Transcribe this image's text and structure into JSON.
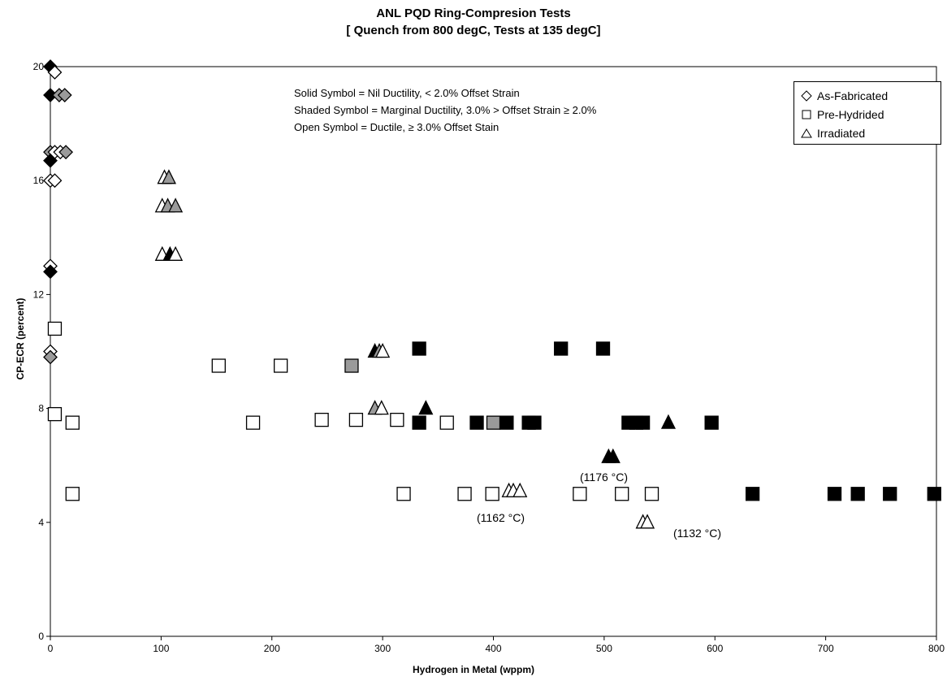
{
  "chart_data": {
    "type": "scatter",
    "title": "ANL PQD Ring-Compresion Tests",
    "subtitle": "[ Quench from 800 degC, Tests at 135 degC]",
    "xlabel": "Hydrogen in Metal (wppm)",
    "ylabel": "CP-ECR (percent)",
    "xlim": [
      0,
      800
    ],
    "ylim": [
      0,
      20
    ],
    "xticks": [
      0,
      100,
      200,
      300,
      400,
      500,
      600,
      700,
      800
    ],
    "yticks": [
      0,
      4,
      8,
      12,
      16,
      20
    ],
    "grid": false,
    "legend_position": "top-right",
    "legend": [
      "As-Fabricated",
      "Pre-Hydrided",
      "Irradiated"
    ],
    "notes": [
      "Solid Symbol = Nil Ductility,  < 2.0% Offset Strain",
      "Shaded Symbol = Marginal Ductility, 3.0% > Offset Strain ≥ 2.0%",
      "Open Symbol = Ductile, ≥ 3.0% Offset Stain"
    ],
    "series": [
      {
        "name": "As-Fabricated",
        "marker": "diamond",
        "points": [
          {
            "x": 0,
            "y": 20,
            "fill": "solid"
          },
          {
            "x": 4,
            "y": 19.8,
            "fill": "open"
          },
          {
            "x": 0,
            "y": 19,
            "fill": "solid"
          },
          {
            "x": 8,
            "y": 19,
            "fill": "shaded"
          },
          {
            "x": 13,
            "y": 19,
            "fill": "shaded"
          },
          {
            "x": 0,
            "y": 17,
            "fill": "shaded"
          },
          {
            "x": 4,
            "y": 17,
            "fill": "open"
          },
          {
            "x": 9,
            "y": 17,
            "fill": "open"
          },
          {
            "x": 14,
            "y": 17,
            "fill": "shaded"
          },
          {
            "x": 0,
            "y": 16.7,
            "fill": "solid"
          },
          {
            "x": 0,
            "y": 16,
            "fill": "open"
          },
          {
            "x": 4,
            "y": 16,
            "fill": "open"
          },
          {
            "x": 0,
            "y": 13,
            "fill": "open"
          },
          {
            "x": 0,
            "y": 12.8,
            "fill": "solid"
          },
          {
            "x": 0,
            "y": 10,
            "fill": "open"
          },
          {
            "x": 0,
            "y": 9.8,
            "fill": "shaded"
          }
        ]
      },
      {
        "name": "Pre-Hydrided",
        "marker": "square",
        "points": [
          {
            "x": 4,
            "y": 10.8,
            "fill": "open"
          },
          {
            "x": 4,
            "y": 7.8,
            "fill": "open"
          },
          {
            "x": 20,
            "y": 7.5,
            "fill": "open"
          },
          {
            "x": 20,
            "y": 5,
            "fill": "open"
          },
          {
            "x": 152,
            "y": 9.5,
            "fill": "open"
          },
          {
            "x": 208,
            "y": 9.5,
            "fill": "open"
          },
          {
            "x": 272,
            "y": 9.5,
            "fill": "shaded"
          },
          {
            "x": 183,
            "y": 7.5,
            "fill": "open"
          },
          {
            "x": 245,
            "y": 7.6,
            "fill": "open"
          },
          {
            "x": 276,
            "y": 7.6,
            "fill": "open"
          },
          {
            "x": 313,
            "y": 7.6,
            "fill": "open"
          },
          {
            "x": 333,
            "y": 10.1,
            "fill": "solid"
          },
          {
            "x": 461,
            "y": 10.1,
            "fill": "solid"
          },
          {
            "x": 499,
            "y": 10.1,
            "fill": "solid"
          },
          {
            "x": 333,
            "y": 7.5,
            "fill": "solid"
          },
          {
            "x": 358,
            "y": 7.5,
            "fill": "open"
          },
          {
            "x": 385,
            "y": 7.5,
            "fill": "solid"
          },
          {
            "x": 400,
            "y": 7.5,
            "fill": "shaded"
          },
          {
            "x": 412,
            "y": 7.5,
            "fill": "solid"
          },
          {
            "x": 432,
            "y": 7.5,
            "fill": "solid"
          },
          {
            "x": 437,
            "y": 7.5,
            "fill": "solid"
          },
          {
            "x": 522,
            "y": 7.5,
            "fill": "solid"
          },
          {
            "x": 529,
            "y": 7.5,
            "fill": "solid"
          },
          {
            "x": 535,
            "y": 7.5,
            "fill": "solid"
          },
          {
            "x": 597,
            "y": 7.5,
            "fill": "solid"
          },
          {
            "x": 319,
            "y": 5,
            "fill": "open"
          },
          {
            "x": 374,
            "y": 5,
            "fill": "open"
          },
          {
            "x": 399,
            "y": 5,
            "fill": "open"
          },
          {
            "x": 478,
            "y": 5,
            "fill": "open"
          },
          {
            "x": 516,
            "y": 5,
            "fill": "open"
          },
          {
            "x": 543,
            "y": 5,
            "fill": "open"
          },
          {
            "x": 634,
            "y": 5,
            "fill": "solid"
          },
          {
            "x": 708,
            "y": 5,
            "fill": "solid"
          },
          {
            "x": 729,
            "y": 5,
            "fill": "solid"
          },
          {
            "x": 758,
            "y": 5,
            "fill": "solid"
          },
          {
            "x": 798,
            "y": 5,
            "fill": "solid"
          }
        ]
      },
      {
        "name": "Irradiated",
        "marker": "triangle",
        "points": [
          {
            "x": 103,
            "y": 16.1,
            "fill": "open"
          },
          {
            "x": 107,
            "y": 16.1,
            "fill": "shaded"
          },
          {
            "x": 101,
            "y": 15.1,
            "fill": "open"
          },
          {
            "x": 106,
            "y": 15.1,
            "fill": "shaded"
          },
          {
            "x": 113,
            "y": 15.1,
            "fill": "shaded"
          },
          {
            "x": 101,
            "y": 13.4,
            "fill": "open"
          },
          {
            "x": 108,
            "y": 13.4,
            "fill": "solid"
          },
          {
            "x": 113,
            "y": 13.4,
            "fill": "open"
          },
          {
            "x": 293,
            "y": 10,
            "fill": "solid"
          },
          {
            "x": 297,
            "y": 10,
            "fill": "shaded"
          },
          {
            "x": 300,
            "y": 10,
            "fill": "open"
          },
          {
            "x": 293,
            "y": 8,
            "fill": "shaded"
          },
          {
            "x": 299,
            "y": 8,
            "fill": "open"
          },
          {
            "x": 339,
            "y": 8,
            "fill": "solid"
          },
          {
            "x": 558,
            "y": 7.5,
            "fill": "solid"
          },
          {
            "x": 504,
            "y": 6.3,
            "fill": "solid"
          },
          {
            "x": 508,
            "y": 6.3,
            "fill": "solid"
          },
          {
            "x": 414,
            "y": 5.1,
            "fill": "open"
          },
          {
            "x": 418,
            "y": 5.1,
            "fill": "open"
          },
          {
            "x": 424,
            "y": 5.1,
            "fill": "open"
          },
          {
            "x": 535,
            "y": 4,
            "fill": "open"
          },
          {
            "x": 539,
            "y": 4,
            "fill": "open"
          }
        ]
      }
    ],
    "annotations": [
      {
        "text": "(1176 °C)",
        "x": 508,
        "y": 5.5
      },
      {
        "text": "(1162 °C)",
        "x": 414,
        "y": 4.25
      },
      {
        "text": "(1132 °C)",
        "x": 578,
        "y": 3.45
      }
    ]
  },
  "colors": {
    "solid": "#000000",
    "shaded": "#9a9a9a",
    "open": "#ffffff",
    "stroke": "#000000"
  }
}
